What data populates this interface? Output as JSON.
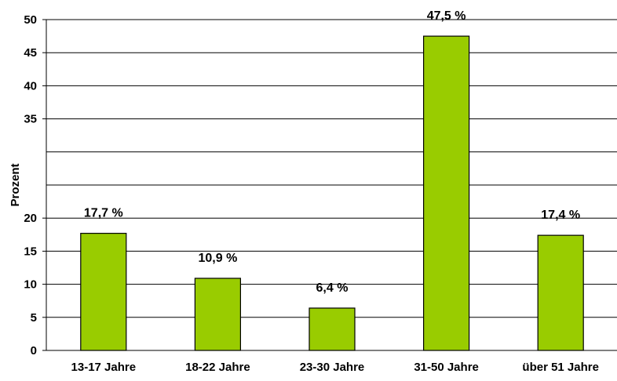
{
  "chart_data": {
    "type": "bar",
    "categories": [
      "13-17 Jahre",
      "18-22 Jahre",
      "23-30 Jahre",
      "31-50 Jahre",
      "über 51 Jahre"
    ],
    "values": [
      17.7,
      10.9,
      6.4,
      47.5,
      17.4
    ],
    "data_labels": [
      "17,7 %",
      "10,9 %",
      "6,4 %",
      "47,5 %",
      "17,4 %"
    ],
    "title": "",
    "xlabel": "",
    "ylabel": "Prozent",
    "ylim": [
      0,
      50
    ],
    "yticks": [
      0,
      5,
      10,
      15,
      20,
      35,
      40,
      45,
      50
    ],
    "gridlines": [
      5,
      10,
      15,
      20,
      25,
      30,
      35,
      40,
      45,
      50
    ],
    "grid": true,
    "legend": "none",
    "bar_color": "#99cc00",
    "bar_outline": "#000000"
  }
}
